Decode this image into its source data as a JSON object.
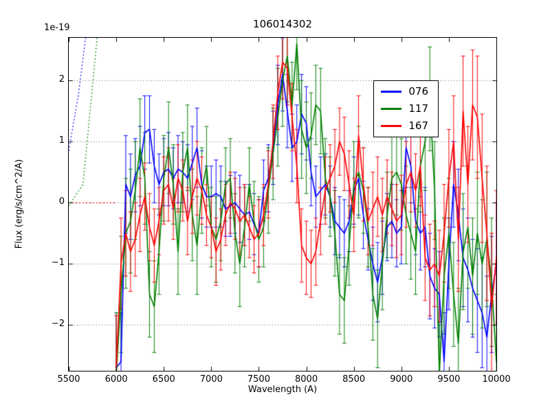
{
  "figure": {
    "title": "106014302",
    "offset_text": "1e-19",
    "xlabel": "Wavelength (A)",
    "ylabel": "Flux (erg/s/cm^2/A)"
  },
  "chart_data": {
    "type": "line",
    "title": "106014302",
    "xlabel": "Wavelength (A)",
    "ylabel": "Flux (erg/s/cm^2/A)",
    "y_offset_factor": "1e-19",
    "xlim": [
      5500,
      10000
    ],
    "ylim": [
      -2.75,
      2.7
    ],
    "xticks": [
      5500,
      6000,
      6500,
      7000,
      7500,
      8000,
      8500,
      9000,
      9500,
      10000
    ],
    "yticks": [
      -2,
      -1,
      0,
      1,
      2
    ],
    "grid": true,
    "legend_position": "upper right",
    "x": [
      6000,
      6050,
      6100,
      6150,
      6200,
      6250,
      6300,
      6350,
      6400,
      6450,
      6500,
      6550,
      6600,
      6650,
      6700,
      6750,
      6800,
      6850,
      6900,
      6950,
      7000,
      7050,
      7100,
      7150,
      7200,
      7250,
      7300,
      7350,
      7400,
      7450,
      7500,
      7550,
      7600,
      7650,
      7700,
      7750,
      7800,
      7850,
      7900,
      7950,
      8000,
      8050,
      8100,
      8150,
      8200,
      8250,
      8300,
      8350,
      8400,
      8450,
      8500,
      8550,
      8600,
      8650,
      8700,
      8750,
      8800,
      8850,
      8900,
      8950,
      9000,
      9050,
      9100,
      9150,
      9200,
      9250,
      9300,
      9350,
      9400,
      9450,
      9500,
      9550,
      9600,
      9650,
      9700,
      9750,
      9800,
      9850,
      9900,
      9950,
      10000
    ],
    "series": [
      {
        "name": "076",
        "color": "#0000ff",
        "values": [
          -2.7,
          -2.6,
          0.3,
          0.1,
          0.45,
          0.6,
          1.15,
          1.2,
          0.6,
          0.3,
          0.5,
          0.55,
          0.4,
          0.55,
          0.5,
          0.4,
          0.65,
          0.9,
          0.3,
          0.1,
          0.1,
          0.15,
          0.1,
          -0.1,
          -0.05,
          0.0,
          -0.1,
          -0.2,
          -0.15,
          -0.35,
          -0.5,
          0.2,
          0.4,
          0.9,
          1.6,
          2.1,
          1.5,
          0.9,
          1.0,
          1.45,
          1.3,
          0.5,
          0.1,
          0.2,
          0.3,
          0.1,
          -0.3,
          -0.4,
          -0.5,
          -0.3,
          0.2,
          0.4,
          -0.2,
          -0.6,
          -1.0,
          -1.3,
          -0.9,
          -0.4,
          -0.3,
          -0.5,
          -0.4,
          0.9,
          0.6,
          -0.3,
          -0.5,
          -0.4,
          -1.2,
          -1.4,
          -1.5,
          -2.6,
          -1.0,
          0.3,
          -0.2,
          -0.9,
          -1.1,
          -1.4,
          -1.6,
          -1.8,
          -2.2,
          -1.5,
          -1.0
        ],
        "errors": [
          0.9,
          0.8,
          0.8,
          0.7,
          0.6,
          0.65,
          0.6,
          0.55,
          0.6,
          0.5,
          0.55,
          0.6,
          0.5,
          0.55,
          0.5,
          0.55,
          0.6,
          0.65,
          0.55,
          0.5,
          0.5,
          0.55,
          0.5,
          0.45,
          0.5,
          0.5,
          0.55,
          0.5,
          0.45,
          0.5,
          0.55,
          0.5,
          0.55,
          0.6,
          0.65,
          0.6,
          0.6,
          0.55,
          0.6,
          0.65,
          0.6,
          0.55,
          0.5,
          0.55,
          0.5,
          0.5,
          0.55,
          0.5,
          0.55,
          0.5,
          0.55,
          0.6,
          0.55,
          0.5,
          0.6,
          0.65,
          0.6,
          0.55,
          0.6,
          0.55,
          0.6,
          0.65,
          0.6,
          0.55,
          0.6,
          0.65,
          0.7,
          0.65,
          0.7,
          0.8,
          0.75,
          0.7,
          0.75,
          0.8,
          0.85,
          0.8,
          0.85,
          0.9,
          1.0,
          0.95,
          1.0
        ]
      },
      {
        "name": "117",
        "color": "#008000",
        "values": [
          -2.8,
          -1.5,
          -0.5,
          -0.3,
          0.2,
          0.9,
          0.4,
          -1.5,
          -1.7,
          -0.8,
          0.4,
          0.9,
          0.3,
          -0.8,
          0.5,
          0.9,
          -0.2,
          -0.7,
          0.2,
          0.6,
          -0.4,
          -0.6,
          -0.3,
          0.3,
          0.4,
          -0.5,
          -1.0,
          -0.4,
          0.3,
          -0.3,
          -0.6,
          -0.4,
          0.2,
          0.8,
          1.4,
          2.0,
          2.4,
          1.6,
          2.6,
          1.2,
          0.9,
          1.1,
          1.6,
          1.5,
          0.4,
          0.1,
          -0.5,
          -1.5,
          -1.6,
          -0.7,
          0.3,
          0.5,
          0.2,
          -0.4,
          -1.5,
          -1.9,
          -1.0,
          -0.2,
          0.4,
          0.5,
          0.3,
          -0.2,
          -0.5,
          -0.8,
          0.6,
          1.0,
          1.7,
          0.2,
          -2.8,
          -1.2,
          -0.5,
          -1.5,
          -2.3,
          -0.8,
          -0.4,
          -1.2,
          -0.5,
          -1.0,
          -0.6,
          -1.3,
          -2.6
        ],
        "errors": [
          1.0,
          0.95,
          0.9,
          0.85,
          0.8,
          0.8,
          0.75,
          0.7,
          0.75,
          0.7,
          0.7,
          0.75,
          0.65,
          0.7,
          0.65,
          0.7,
          0.75,
          0.8,
          0.7,
          0.65,
          0.65,
          0.7,
          0.65,
          0.6,
          0.65,
          0.65,
          0.7,
          0.65,
          0.6,
          0.65,
          0.7,
          0.65,
          0.7,
          0.75,
          0.8,
          0.75,
          0.75,
          0.7,
          0.75,
          0.8,
          0.75,
          0.7,
          0.65,
          0.7,
          0.65,
          0.65,
          0.7,
          0.65,
          0.7,
          0.65,
          0.7,
          0.75,
          0.7,
          0.65,
          0.75,
          0.8,
          0.75,
          0.7,
          0.75,
          0.7,
          0.75,
          0.8,
          0.75,
          0.7,
          0.75,
          0.8,
          0.85,
          0.8,
          0.85,
          0.95,
          0.9,
          0.85,
          0.9,
          0.95,
          1.0,
          0.95,
          1.0,
          1.05,
          1.1,
          1.05,
          1.1
        ]
      },
      {
        "name": "167",
        "color": "#ff0000",
        "values": [
          -2.7,
          -1.0,
          -0.5,
          -0.8,
          -0.6,
          -0.2,
          0.1,
          -0.4,
          -0.7,
          -0.3,
          0.2,
          0.3,
          -0.1,
          0.4,
          0.2,
          -0.3,
          0.1,
          0.4,
          0.2,
          -0.2,
          -0.4,
          -0.8,
          -0.6,
          -0.2,
          0.0,
          -0.1,
          -0.3,
          -0.2,
          -0.4,
          -0.6,
          -0.5,
          -0.2,
          0.3,
          1.0,
          1.8,
          2.3,
          2.2,
          1.4,
          0.6,
          -0.7,
          -0.9,
          -1.0,
          -0.8,
          -0.3,
          0.2,
          0.4,
          0.6,
          1.0,
          0.8,
          0.3,
          -0.2,
          1.1,
          0.3,
          -0.3,
          -0.1,
          0.1,
          -0.2,
          0.1,
          -0.1,
          -0.3,
          -0.2,
          0.3,
          0.5,
          0.2,
          0.6,
          -0.9,
          -1.1,
          -1.0,
          -1.2,
          -0.5,
          0.4,
          1.0,
          -0.6,
          1.5,
          0.3,
          1.6,
          1.4,
          0.4,
          -0.5,
          -1.7,
          -0.9
        ],
        "errors": [
          0.85,
          0.75,
          0.7,
          0.65,
          0.6,
          0.6,
          0.55,
          0.55,
          0.6,
          0.55,
          0.55,
          0.6,
          0.5,
          0.55,
          0.5,
          0.55,
          0.6,
          0.6,
          0.55,
          0.5,
          0.5,
          0.55,
          0.5,
          0.5,
          0.5,
          0.5,
          0.55,
          0.5,
          0.5,
          0.55,
          0.55,
          0.5,
          0.55,
          0.6,
          0.6,
          0.6,
          0.6,
          0.55,
          0.6,
          0.6,
          0.6,
          0.55,
          0.55,
          0.55,
          0.55,
          0.55,
          0.6,
          0.55,
          0.6,
          0.55,
          0.6,
          0.65,
          0.6,
          0.55,
          0.6,
          0.65,
          0.6,
          0.6,
          0.6,
          0.6,
          0.65,
          0.7,
          0.65,
          0.6,
          0.65,
          0.7,
          0.75,
          0.7,
          0.75,
          0.8,
          0.8,
          0.75,
          0.85,
          0.9,
          0.95,
          0.9,
          1.0,
          1.05,
          1.1,
          1.2,
          1.1
        ]
      }
    ],
    "masked_dotted_segments": [
      {
        "color": "#0000ff",
        "points": [
          [
            5500,
            0.85
          ],
          [
            5600,
            1.75
          ],
          [
            5685,
            2.8
          ]
        ]
      },
      {
        "color": "#008000",
        "points": [
          [
            5500,
            -0.05
          ],
          [
            5650,
            0.3
          ],
          [
            5805,
            2.8
          ]
        ]
      },
      {
        "color": "#ff0000",
        "points": [
          [
            5500,
            0.0
          ],
          [
            6000,
            0.0
          ]
        ]
      }
    ]
  }
}
